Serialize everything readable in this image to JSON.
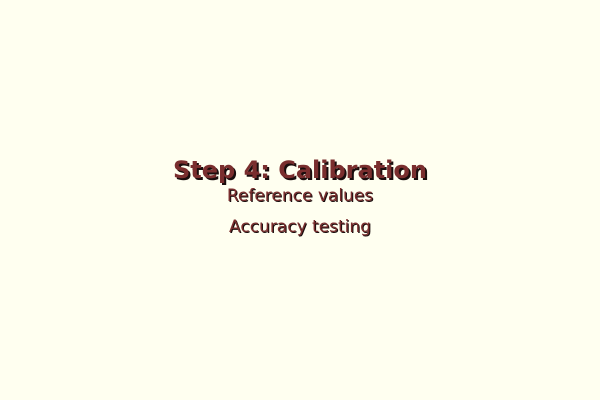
{
  "slide": {
    "title": "Step 4: Calibration",
    "items": [
      "Reference values",
      "Accuracy testing"
    ]
  }
}
